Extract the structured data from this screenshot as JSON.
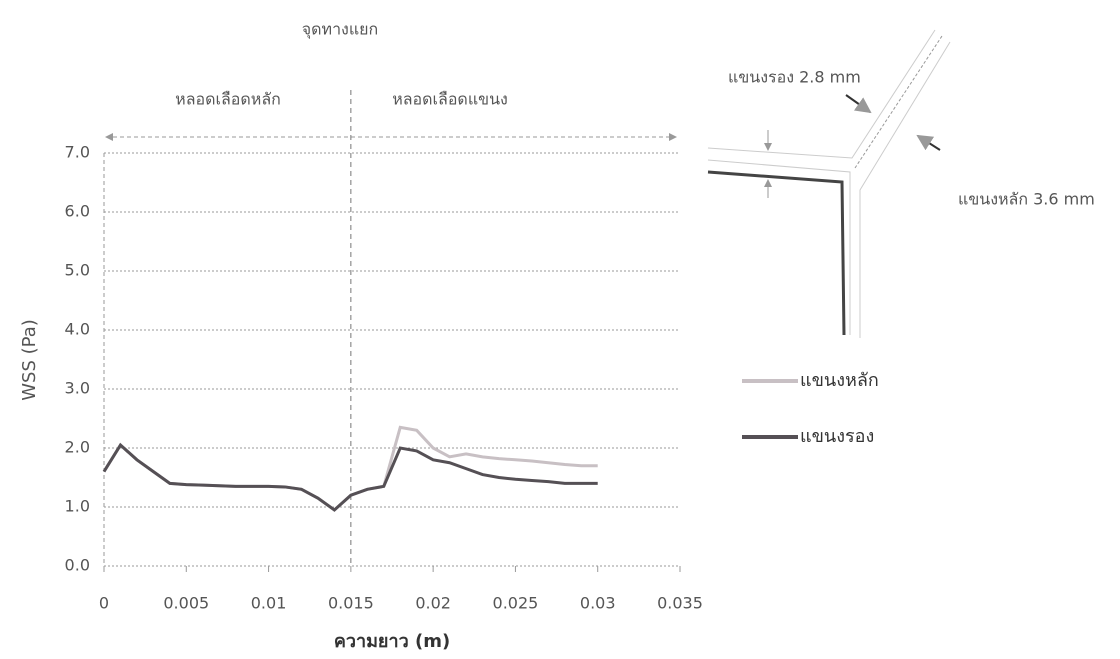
{
  "chart_data": {
    "type": "line",
    "title": "จุดทางแยก",
    "region_labels": [
      "หลอดเลือดหลัก",
      "หลอดเลือดแขนง"
    ],
    "junction_x": 0.015,
    "diagram_labels": [
      "แขนงรอง 2.8 mm",
      "แขนงหลัก 3.6 mm"
    ],
    "x_label": "ความยาว (m)",
    "y_label": "WSS (Pa)",
    "x": [
      0,
      0.001,
      0.002,
      0.003,
      0.004,
      0.005,
      0.006,
      0.007,
      0.008,
      0.009,
      0.01,
      0.011,
      0.012,
      0.013,
      0.014,
      0.015,
      0.016,
      0.017,
      0.018,
      0.019,
      0.02,
      0.021,
      0.022,
      0.023,
      0.024,
      0.025,
      0.026,
      0.027,
      0.028,
      0.029,
      0.03
    ],
    "series": [
      {
        "name": "แขนงหลัก",
        "color": "#c8c0c4",
        "values": [
          1.6,
          2.05,
          1.8,
          1.6,
          1.4,
          1.38,
          1.37,
          1.36,
          1.35,
          1.35,
          1.35,
          1.34,
          1.3,
          1.15,
          0.95,
          1.2,
          1.3,
          1.35,
          2.35,
          2.3,
          2.0,
          1.85,
          1.9,
          1.85,
          1.82,
          1.8,
          1.78,
          1.75,
          1.72,
          1.7,
          1.7
        ]
      },
      {
        "name": "แขนงรอง",
        "color": "#555055",
        "values": [
          1.6,
          2.05,
          1.8,
          1.6,
          1.4,
          1.38,
          1.37,
          1.36,
          1.35,
          1.35,
          1.35,
          1.34,
          1.3,
          1.15,
          0.95,
          1.2,
          1.3,
          1.35,
          2.0,
          1.95,
          1.8,
          1.75,
          1.65,
          1.55,
          1.5,
          1.47,
          1.45,
          1.43,
          1.4,
          1.4,
          1.4
        ]
      }
    ],
    "xlim": [
      0,
      0.035
    ],
    "xticks": [
      0,
      0.005,
      0.01,
      0.015,
      0.02,
      0.025,
      0.03,
      0.035
    ],
    "ylim": [
      0,
      7
    ],
    "yticks": [
      {
        "value": 0,
        "label": "0.0"
      },
      {
        "value": 1,
        "label": "1.0"
      },
      {
        "value": 2,
        "label": "2.0"
      },
      {
        "value": 3,
        "label": "3.0"
      },
      {
        "value": 4,
        "label": "4.0"
      },
      {
        "value": 5,
        "label": "5.0"
      },
      {
        "value": 6,
        "label": "6.0"
      },
      {
        "value": 7,
        "label": "7.0"
      }
    ],
    "grid": true
  }
}
